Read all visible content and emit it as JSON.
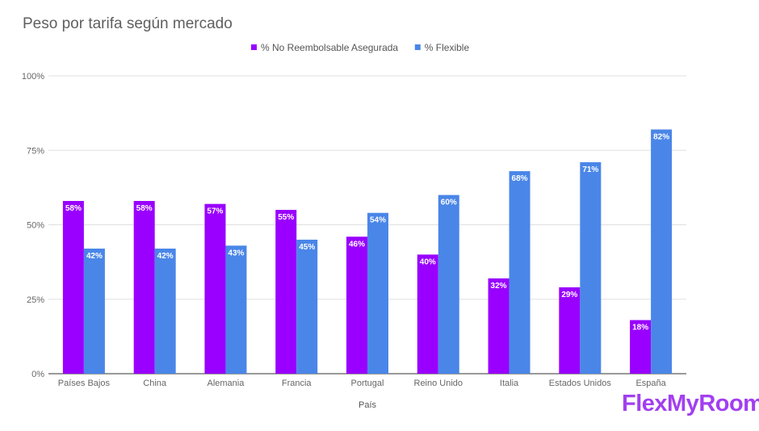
{
  "chart_data": {
    "type": "bar",
    "title": "Peso por tarifa según mercado",
    "xlabel": "País",
    "ylabel": "",
    "ylim": [
      0,
      100
    ],
    "yticks": [
      "0%",
      "25%",
      "50%",
      "75%",
      "100%"
    ],
    "ytick_values": [
      0,
      25,
      50,
      75,
      100
    ],
    "grid": true,
    "legend_position": "top-center",
    "categories": [
      "Países Bajos",
      "China",
      "Alemania",
      "Francia",
      "Portugal",
      "Reino Unido",
      "Italia",
      "Estados Unidos",
      "España"
    ],
    "series": [
      {
        "name": "% No Reembolsable Asegurada",
        "color": "#9900ff",
        "values": [
          58,
          58,
          57,
          55,
          46,
          40,
          32,
          29,
          18
        ],
        "labels": [
          "58%",
          "58%",
          "57%",
          "55%",
          "46%",
          "40%",
          "32%",
          "29%",
          "18%"
        ]
      },
      {
        "name": "% Flexible",
        "color": "#4a86e8",
        "values": [
          42,
          42,
          43,
          45,
          54,
          60,
          68,
          71,
          82
        ],
        "labels": [
          "42%",
          "42%",
          "43%",
          "45%",
          "54%",
          "60%",
          "68%",
          "71%",
          "82%"
        ]
      }
    ]
  },
  "brand": {
    "logo_text": "FlexMyRoom",
    "color": "#a23ff0"
  }
}
